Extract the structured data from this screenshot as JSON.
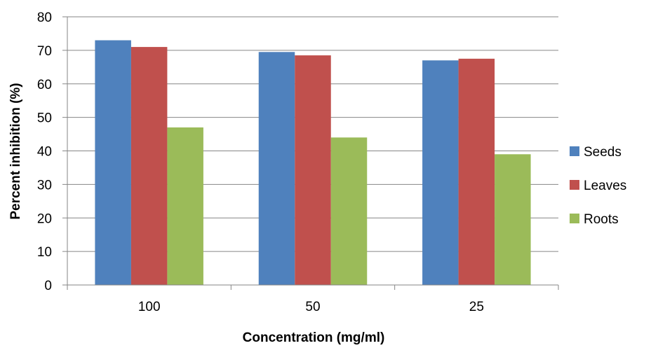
{
  "chart_data": {
    "type": "bar",
    "title": "",
    "xlabel": "Concentration (mg/ml)",
    "ylabel": "Percent inhibition (%)",
    "categories": [
      "100",
      "50",
      "25"
    ],
    "series": [
      {
        "name": "Seeds",
        "color": "#4F81BD",
        "values": [
          73,
          69.5,
          67
        ]
      },
      {
        "name": "Leaves",
        "color": "#C0504D",
        "values": [
          71,
          68.5,
          67.5
        ]
      },
      {
        "name": "Roots",
        "color": "#9BBB59",
        "values": [
          47,
          44,
          39
        ]
      }
    ],
    "ylim": [
      0,
      80
    ],
    "yticks": [
      "0",
      "10",
      "20",
      "30",
      "40",
      "50",
      "60",
      "70",
      "80"
    ],
    "grid": "horizontal",
    "legend": "right"
  }
}
